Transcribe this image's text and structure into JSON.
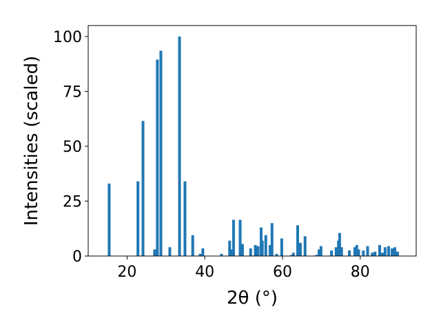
{
  "chart_data": {
    "type": "bar",
    "xlabel": "2θ (°)",
    "ylabel": "Intensities (scaled)",
    "color": "#1f77b4",
    "x": [
      15.4,
      22.8,
      24.1,
      27.1,
      27.8,
      28.7,
      31.0,
      33.5,
      34.9,
      36.9,
      38.8,
      39.5,
      44.3,
      46.4,
      46.9,
      47.4,
      49.1,
      49.7,
      51.8,
      53.0,
      53.7,
      54.5,
      54.8,
      55.7,
      56.8,
      57.3,
      58.5,
      59.8,
      62.3,
      62.8,
      63.9,
      64.6,
      65.8,
      68.7,
      69.4,
      69.9,
      72.6,
      73.8,
      74.4,
      74.7,
      75.2,
      77.2,
      78.6,
      79.1,
      79.6,
      80.8,
      81.9,
      83.1,
      83.8,
      85.0,
      85.7,
      86.4,
      87.3,
      88.2,
      88.9,
      89.6
    ],
    "values": [
      33,
      34,
      61.5,
      3,
      89.5,
      93.5,
      4,
      100,
      34,
      9.5,
      1,
      3.5,
      1,
      7,
      3,
      16.5,
      16.5,
      5.5,
      3.5,
      5,
      4.5,
      13,
      7,
      9.5,
      5,
      15,
      1,
      8,
      0.5,
      1.5,
      14,
      6,
      9,
      0.5,
      3,
      4.5,
      2.5,
      4,
      7,
      10.5,
      4,
      2.5,
      4,
      5,
      3,
      2.5,
      4.5,
      1.5,
      2,
      5,
      1.5,
      4,
      4.5,
      3.5,
      4,
      2
    ],
    "xlim": [
      10,
      94.4
    ],
    "xticks": [
      20,
      40,
      60,
      80
    ],
    "ylim": [
      0,
      105
    ],
    "yticks": [
      0,
      25,
      50,
      75,
      100
    ]
  }
}
